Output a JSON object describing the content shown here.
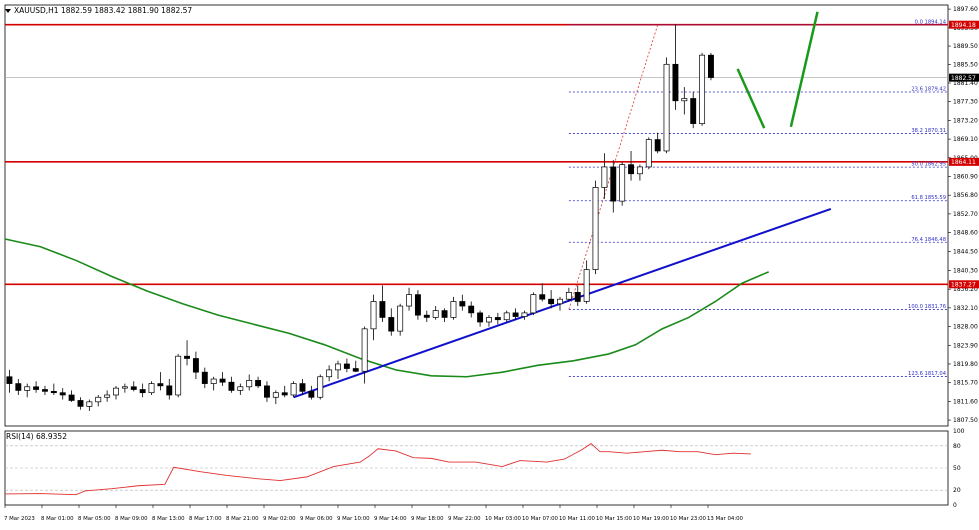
{
  "header": {
    "symbol_text": "XAUUSD,H1  1882.59 1883.42 1881.90 1882.57"
  },
  "rsi_label": "RSI(14) 68.9352",
  "colors": {
    "bull": "#ffffff",
    "bear": "#000000",
    "candle_outline": "#000000",
    "ma": "#1a8a1a",
    "trendline": "#1010cc",
    "resistance": "#d40000",
    "fib": "#3030c8",
    "fib_vertical": "#e03030",
    "rsi": "#e03030",
    "forecast": "#1a9a1a",
    "grid": "#c8c8c8"
  },
  "chart_data": {
    "type": "candlestick",
    "symbol": "XAUUSD",
    "timeframe": "H1",
    "last_bar": {
      "open": 1882.59,
      "high": 1883.42,
      "low": 1881.9,
      "close": 1882.57
    },
    "y_ticks": [
      "1897.60",
      "1893.50",
      "1889.50",
      "1885.50",
      "1881.40",
      "1877.30",
      "1873.20",
      "1869.10",
      "1865.00",
      "1860.90",
      "1856.80",
      "1852.70",
      "1848.60",
      "1844.50",
      "1840.30",
      "1836.20",
      "1832.10",
      "1828.00",
      "1823.90",
      "1819.80",
      "1815.70",
      "1811.60",
      "1807.50"
    ],
    "x_ticks": [
      "7 Mar 2023",
      "8 Mar 01:00",
      "8 Mar 05:00",
      "8 Mar 09:00",
      "8 Mar 13:00",
      "8 Mar 17:00",
      "8 Mar 21:00",
      "9 Mar 02:00",
      "9 Mar 06:00",
      "9 Mar 10:00",
      "9 Mar 14:00",
      "9 Mar 18:00",
      "9 Mar 22:00",
      "10 Mar 03:00",
      "10 Mar 07:00",
      "10 Mar 11:00",
      "10 Mar 15:00",
      "10 Mar 19:00",
      "10 Mar 23:00",
      "13 Mar 04:00"
    ],
    "y_range": [
      1806.2,
      1898.5
    ],
    "candles": [
      {
        "o": 1817.0,
        "h": 1818.5,
        "l": 1813.5,
        "c": 1815.5
      },
      {
        "o": 1815.5,
        "h": 1816.5,
        "l": 1813.0,
        "c": 1814.0
      },
      {
        "o": 1814.0,
        "h": 1815.5,
        "l": 1812.5,
        "c": 1814.8
      },
      {
        "o": 1814.8,
        "h": 1816.0,
        "l": 1813.5,
        "c": 1814.2
      },
      {
        "o": 1814.2,
        "h": 1815.0,
        "l": 1813.0,
        "c": 1813.8
      },
      {
        "o": 1813.8,
        "h": 1815.5,
        "l": 1813.0,
        "c": 1813.5
      },
      {
        "o": 1813.5,
        "h": 1814.5,
        "l": 1812.0,
        "c": 1813.0
      },
      {
        "o": 1813.0,
        "h": 1814.0,
        "l": 1811.5,
        "c": 1811.8
      },
      {
        "o": 1811.8,
        "h": 1812.5,
        "l": 1809.8,
        "c": 1810.5
      },
      {
        "o": 1810.5,
        "h": 1812.0,
        "l": 1809.5,
        "c": 1811.5
      },
      {
        "o": 1811.5,
        "h": 1813.0,
        "l": 1810.5,
        "c": 1812.5
      },
      {
        "o": 1812.5,
        "h": 1814.0,
        "l": 1811.5,
        "c": 1813.0
      },
      {
        "o": 1813.0,
        "h": 1815.0,
        "l": 1812.0,
        "c": 1814.5
      },
      {
        "o": 1814.5,
        "h": 1815.5,
        "l": 1813.5,
        "c": 1814.8
      },
      {
        "o": 1814.8,
        "h": 1816.0,
        "l": 1813.8,
        "c": 1814.2
      },
      {
        "o": 1814.2,
        "h": 1815.5,
        "l": 1812.5,
        "c": 1813.5
      },
      {
        "o": 1813.5,
        "h": 1816.0,
        "l": 1813.0,
        "c": 1815.5
      },
      {
        "o": 1815.5,
        "h": 1818.0,
        "l": 1814.0,
        "c": 1815.0
      },
      {
        "o": 1815.0,
        "h": 1816.5,
        "l": 1812.0,
        "c": 1813.0
      },
      {
        "o": 1813.0,
        "h": 1822.0,
        "l": 1812.5,
        "c": 1821.5
      },
      {
        "o": 1821.5,
        "h": 1825.0,
        "l": 1819.5,
        "c": 1821.0
      },
      {
        "o": 1821.0,
        "h": 1822.5,
        "l": 1816.5,
        "c": 1818.0
      },
      {
        "o": 1818.0,
        "h": 1819.0,
        "l": 1814.5,
        "c": 1815.5
      },
      {
        "o": 1815.5,
        "h": 1817.0,
        "l": 1814.0,
        "c": 1816.5
      },
      {
        "o": 1816.5,
        "h": 1818.0,
        "l": 1815.0,
        "c": 1815.8
      },
      {
        "o": 1815.8,
        "h": 1817.0,
        "l": 1813.5,
        "c": 1814.0
      },
      {
        "o": 1814.0,
        "h": 1815.5,
        "l": 1813.0,
        "c": 1814.8
      },
      {
        "o": 1814.8,
        "h": 1817.5,
        "l": 1814.0,
        "c": 1816.2
      },
      {
        "o": 1816.2,
        "h": 1817.0,
        "l": 1814.5,
        "c": 1815.0
      },
      {
        "o": 1815.0,
        "h": 1816.0,
        "l": 1811.5,
        "c": 1812.5
      },
      {
        "o": 1812.5,
        "h": 1814.0,
        "l": 1811.0,
        "c": 1813.5
      },
      {
        "o": 1813.5,
        "h": 1815.0,
        "l": 1812.5,
        "c": 1813.0
      },
      {
        "o": 1813.0,
        "h": 1816.0,
        "l": 1812.5,
        "c": 1815.5
      },
      {
        "o": 1815.5,
        "h": 1816.5,
        "l": 1813.0,
        "c": 1813.8
      },
      {
        "o": 1813.8,
        "h": 1815.0,
        "l": 1812.0,
        "c": 1812.5
      },
      {
        "o": 1812.5,
        "h": 1817.5,
        "l": 1812.0,
        "c": 1817.0
      },
      {
        "o": 1817.0,
        "h": 1819.5,
        "l": 1816.0,
        "c": 1818.5
      },
      {
        "o": 1818.5,
        "h": 1820.5,
        "l": 1816.5,
        "c": 1819.8
      },
      {
        "o": 1819.8,
        "h": 1821.0,
        "l": 1818.0,
        "c": 1818.8
      },
      {
        "o": 1818.8,
        "h": 1820.5,
        "l": 1818.0,
        "c": 1818.2
      },
      {
        "o": 1818.2,
        "h": 1828.0,
        "l": 1815.5,
        "c": 1827.5
      },
      {
        "o": 1827.5,
        "h": 1835.0,
        "l": 1825.0,
        "c": 1833.5
      },
      {
        "o": 1833.5,
        "h": 1837.0,
        "l": 1829.0,
        "c": 1830.0
      },
      {
        "o": 1830.0,
        "h": 1832.0,
        "l": 1826.0,
        "c": 1827.0
      },
      {
        "o": 1827.0,
        "h": 1833.0,
        "l": 1826.0,
        "c": 1832.5
      },
      {
        "o": 1832.5,
        "h": 1836.5,
        "l": 1831.5,
        "c": 1835.0
      },
      {
        "o": 1835.0,
        "h": 1836.0,
        "l": 1829.5,
        "c": 1830.5
      },
      {
        "o": 1830.5,
        "h": 1831.5,
        "l": 1829.0,
        "c": 1830.0
      },
      {
        "o": 1830.0,
        "h": 1832.5,
        "l": 1829.5,
        "c": 1831.5
      },
      {
        "o": 1831.5,
        "h": 1832.0,
        "l": 1829.0,
        "c": 1830.0
      },
      {
        "o": 1830.0,
        "h": 1834.5,
        "l": 1829.5,
        "c": 1833.5
      },
      {
        "o": 1833.5,
        "h": 1835.0,
        "l": 1831.5,
        "c": 1832.5
      },
      {
        "o": 1832.5,
        "h": 1833.5,
        "l": 1830.0,
        "c": 1831.0
      },
      {
        "o": 1831.0,
        "h": 1831.5,
        "l": 1828.0,
        "c": 1829.0
      },
      {
        "o": 1829.0,
        "h": 1830.5,
        "l": 1828.0,
        "c": 1830.0
      },
      {
        "o": 1830.0,
        "h": 1831.0,
        "l": 1828.5,
        "c": 1829.5
      },
      {
        "o": 1829.5,
        "h": 1831.5,
        "l": 1829.0,
        "c": 1831.0
      },
      {
        "o": 1831.0,
        "h": 1832.0,
        "l": 1829.5,
        "c": 1830.2
      },
      {
        "o": 1830.2,
        "h": 1831.5,
        "l": 1829.5,
        "c": 1831.0
      },
      {
        "o": 1831.0,
        "h": 1835.5,
        "l": 1830.5,
        "c": 1835.0
      },
      {
        "o": 1835.0,
        "h": 1837.5,
        "l": 1833.5,
        "c": 1834.0
      },
      {
        "o": 1834.0,
        "h": 1836.0,
        "l": 1832.0,
        "c": 1833.0
      },
      {
        "o": 1833.0,
        "h": 1834.5,
        "l": 1831.5,
        "c": 1834.0
      },
      {
        "o": 1834.0,
        "h": 1836.5,
        "l": 1833.5,
        "c": 1835.5
      },
      {
        "o": 1835.5,
        "h": 1837.0,
        "l": 1832.5,
        "c": 1833.5
      },
      {
        "o": 1833.5,
        "h": 1842.5,
        "l": 1833.0,
        "c": 1840.5
      },
      {
        "o": 1840.5,
        "h": 1860.0,
        "l": 1839.5,
        "c": 1858.5
      },
      {
        "o": 1858.5,
        "h": 1866.0,
        "l": 1856.0,
        "c": 1863.0
      },
      {
        "o": 1863.0,
        "h": 1864.5,
        "l": 1853.0,
        "c": 1855.5
      },
      {
        "o": 1855.5,
        "h": 1864.0,
        "l": 1854.5,
        "c": 1863.5
      },
      {
        "o": 1863.5,
        "h": 1866.5,
        "l": 1860.0,
        "c": 1861.5
      },
      {
        "o": 1861.5,
        "h": 1863.5,
        "l": 1860.0,
        "c": 1863.0
      },
      {
        "o": 1863.0,
        "h": 1869.5,
        "l": 1862.5,
        "c": 1869.0
      },
      {
        "o": 1869.0,
        "h": 1870.5,
        "l": 1866.0,
        "c": 1866.5
      },
      {
        "o": 1866.5,
        "h": 1887.0,
        "l": 1866.0,
        "c": 1885.5
      },
      {
        "o": 1885.5,
        "h": 1894.2,
        "l": 1875.5,
        "c": 1877.5
      },
      {
        "o": 1877.5,
        "h": 1880.5,
        "l": 1874.5,
        "c": 1878.0
      },
      {
        "o": 1878.0,
        "h": 1879.5,
        "l": 1871.5,
        "c": 1872.5
      },
      {
        "o": 1872.5,
        "h": 1888.0,
        "l": 1872.0,
        "c": 1887.5
      },
      {
        "o": 1887.5,
        "h": 1888.0,
        "l": 1882.0,
        "c": 1882.6
      }
    ],
    "moving_average": {
      "points": [
        [
          0,
          1847.2
        ],
        [
          4,
          1845.5
        ],
        [
          8,
          1842.5
        ],
        [
          12,
          1839.0
        ],
        [
          16,
          1835.8
        ],
        [
          20,
          1833.0
        ],
        [
          24,
          1830.5
        ],
        [
          28,
          1828.5
        ],
        [
          32,
          1826.5
        ],
        [
          36,
          1824.0
        ],
        [
          40,
          1821.0
        ],
        [
          44,
          1818.5
        ],
        [
          48,
          1817.2
        ],
        [
          52,
          1817.0
        ],
        [
          56,
          1818.0
        ],
        [
          60,
          1819.5
        ],
        [
          64,
          1820.5
        ],
        [
          68,
          1822.0
        ],
        [
          71,
          1824.0
        ],
        [
          74,
          1827.5
        ],
        [
          77,
          1830.0
        ],
        [
          80,
          1833.5
        ],
        [
          83,
          1837.5
        ],
        [
          86,
          1840.0
        ]
      ]
    },
    "trendline": {
      "from": [
        1812.5,
        32.5
      ],
      "to": [
        1853.8,
        93.0
      ]
    },
    "resistance_levels": [
      {
        "price": 1894.18,
        "label": "1894.18"
      },
      {
        "price": 1864.11,
        "label": "1864.11"
      },
      {
        "price": 1837.27,
        "label": "1837.27"
      }
    ],
    "fibonacci": {
      "levels": [
        {
          "price": 1894.14,
          "label": "0.0 1894.14"
        },
        {
          "price": 1879.42,
          "label": "23.6 1879.42"
        },
        {
          "price": 1870.31,
          "label": "38.2 1870.31"
        },
        {
          "price": 1862.95,
          "label": "50.0 1862.95"
        },
        {
          "price": 1855.59,
          "label": "61.8 1855.59"
        },
        {
          "price": 1846.48,
          "label": "76.4 1846.48"
        },
        {
          "price": 1831.76,
          "label": "100.0 1831.76"
        },
        {
          "price": 1817.04,
          "label": "123.6 1817.04"
        }
      ],
      "x_start": 63.5,
      "diagonal": {
        "from": [
          63.5,
          1831.76
        ],
        "to": [
          73.5,
          1894.14
        ]
      }
    },
    "current_price": {
      "price": 1882.57,
      "label": "1882.57"
    },
    "forecast_path": [
      [
        82.5,
        1884.5
      ],
      [
        85.5,
        1871.5
      ],
      [
        88.5,
        1871.8
      ],
      [
        91.5,
        1897.0
      ]
    ],
    "rsi": {
      "name": "RSI(14)",
      "value": 68.9352,
      "ticks": [
        "100",
        "80",
        "50",
        "20",
        "0"
      ],
      "points": [
        [
          0,
          15
        ],
        [
          4,
          15.5
        ],
        [
          8,
          14
        ],
        [
          9,
          19
        ],
        [
          12,
          22
        ],
        [
          15,
          26
        ],
        [
          18,
          28
        ],
        [
          19,
          51
        ],
        [
          22,
          45
        ],
        [
          25,
          40
        ],
        [
          28,
          36
        ],
        [
          31,
          33
        ],
        [
          34,
          38
        ],
        [
          37,
          52
        ],
        [
          40,
          58
        ],
        [
          41,
          66
        ],
        [
          42,
          76
        ],
        [
          44,
          73
        ],
        [
          46,
          64
        ],
        [
          48,
          63
        ],
        [
          50,
          58
        ],
        [
          53,
          58
        ],
        [
          56,
          52
        ],
        [
          58,
          60
        ],
        [
          61,
          58
        ],
        [
          63,
          62
        ],
        [
          65,
          75
        ],
        [
          66,
          83
        ],
        [
          67,
          72
        ],
        [
          68,
          72
        ],
        [
          70,
          70
        ],
        [
          72,
          72
        ],
        [
          74,
          74
        ],
        [
          76,
          72
        ],
        [
          78,
          72
        ],
        [
          80,
          68
        ],
        [
          82,
          70
        ],
        [
          84,
          69
        ]
      ]
    }
  }
}
